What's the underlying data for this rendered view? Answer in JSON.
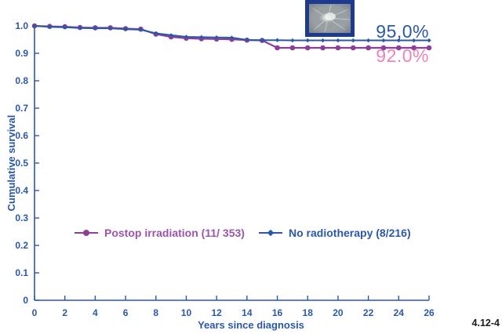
{
  "theme": {
    "blue": "#2a58a8",
    "purple": "#8d3f97",
    "purple_text": "#9b55ae",
    "pink": "#ee82ba",
    "navy": "#1d3a8f",
    "figtext": "#1c1c1c",
    "background": "#ffffff"
  },
  "figure": {
    "number_label": "4.12-4"
  },
  "chart_data": {
    "type": "line",
    "title": "",
    "xlabel": "Years since diagnosis",
    "ylabel": "Cumulative survival",
    "xlim": [
      0,
      26
    ],
    "ylim": [
      0,
      1.0
    ],
    "grid": false,
    "legend_position": "inside-lower-left",
    "x_ticks": [
      0,
      2,
      4,
      6,
      8,
      10,
      12,
      14,
      16,
      18,
      20,
      22,
      24,
      26
    ],
    "y_ticks": [
      1.0,
      0.9,
      0.8,
      0.7,
      0.6,
      0.5,
      0.4,
      0.3,
      0.2,
      0.1,
      0
    ],
    "y_tick_labels": [
      "1.0",
      "0.9",
      "0.8",
      "0.7",
      "0.6",
      "0.5",
      "0.4",
      "0.3",
      "0.2",
      "0.1",
      "0"
    ],
    "series": [
      {
        "name": "Postop irradiation (11/ 353)",
        "color": "#8d3f97",
        "marker": "circle",
        "marker_size": 3.3,
        "line_width": 2.2,
        "end_label": "92.0%",
        "end_label_color": "#ee82ba",
        "x": [
          0,
          1,
          2,
          3,
          4,
          5,
          6,
          7,
          8,
          9,
          10,
          11,
          12,
          13,
          14,
          15,
          16,
          17,
          18,
          19,
          20,
          21,
          22,
          23,
          24,
          25,
          26
        ],
        "y": [
          1.0,
          0.998,
          0.997,
          0.994,
          0.993,
          0.993,
          0.99,
          0.988,
          0.97,
          0.96,
          0.955,
          0.953,
          0.952,
          0.951,
          0.948,
          0.947,
          0.92,
          0.92,
          0.92,
          0.92,
          0.92,
          0.92,
          0.92,
          0.92,
          0.92,
          0.92,
          0.92
        ]
      },
      {
        "name": "No radiotherapy (8/216)",
        "color": "#2a58a8",
        "marker": "diamond",
        "marker_size": 2.7,
        "line_width": 2.0,
        "end_label": "95,0%",
        "end_label_color": "#2a58a8",
        "x": [
          0,
          1,
          2,
          3,
          4,
          5,
          6,
          7,
          8,
          9,
          10,
          11,
          12,
          13,
          14,
          15,
          16,
          17,
          18,
          19,
          20,
          21,
          22,
          23,
          24,
          25,
          26
        ],
        "y": [
          1.0,
          0.996,
          0.995,
          0.992,
          0.991,
          0.991,
          0.988,
          0.986,
          0.973,
          0.966,
          0.96,
          0.959,
          0.958,
          0.957,
          0.949,
          0.948,
          0.948,
          0.947,
          0.947,
          0.947,
          0.947,
          0.947,
          0.947,
          0.947,
          0.947,
          0.947,
          0.947
        ]
      }
    ]
  }
}
